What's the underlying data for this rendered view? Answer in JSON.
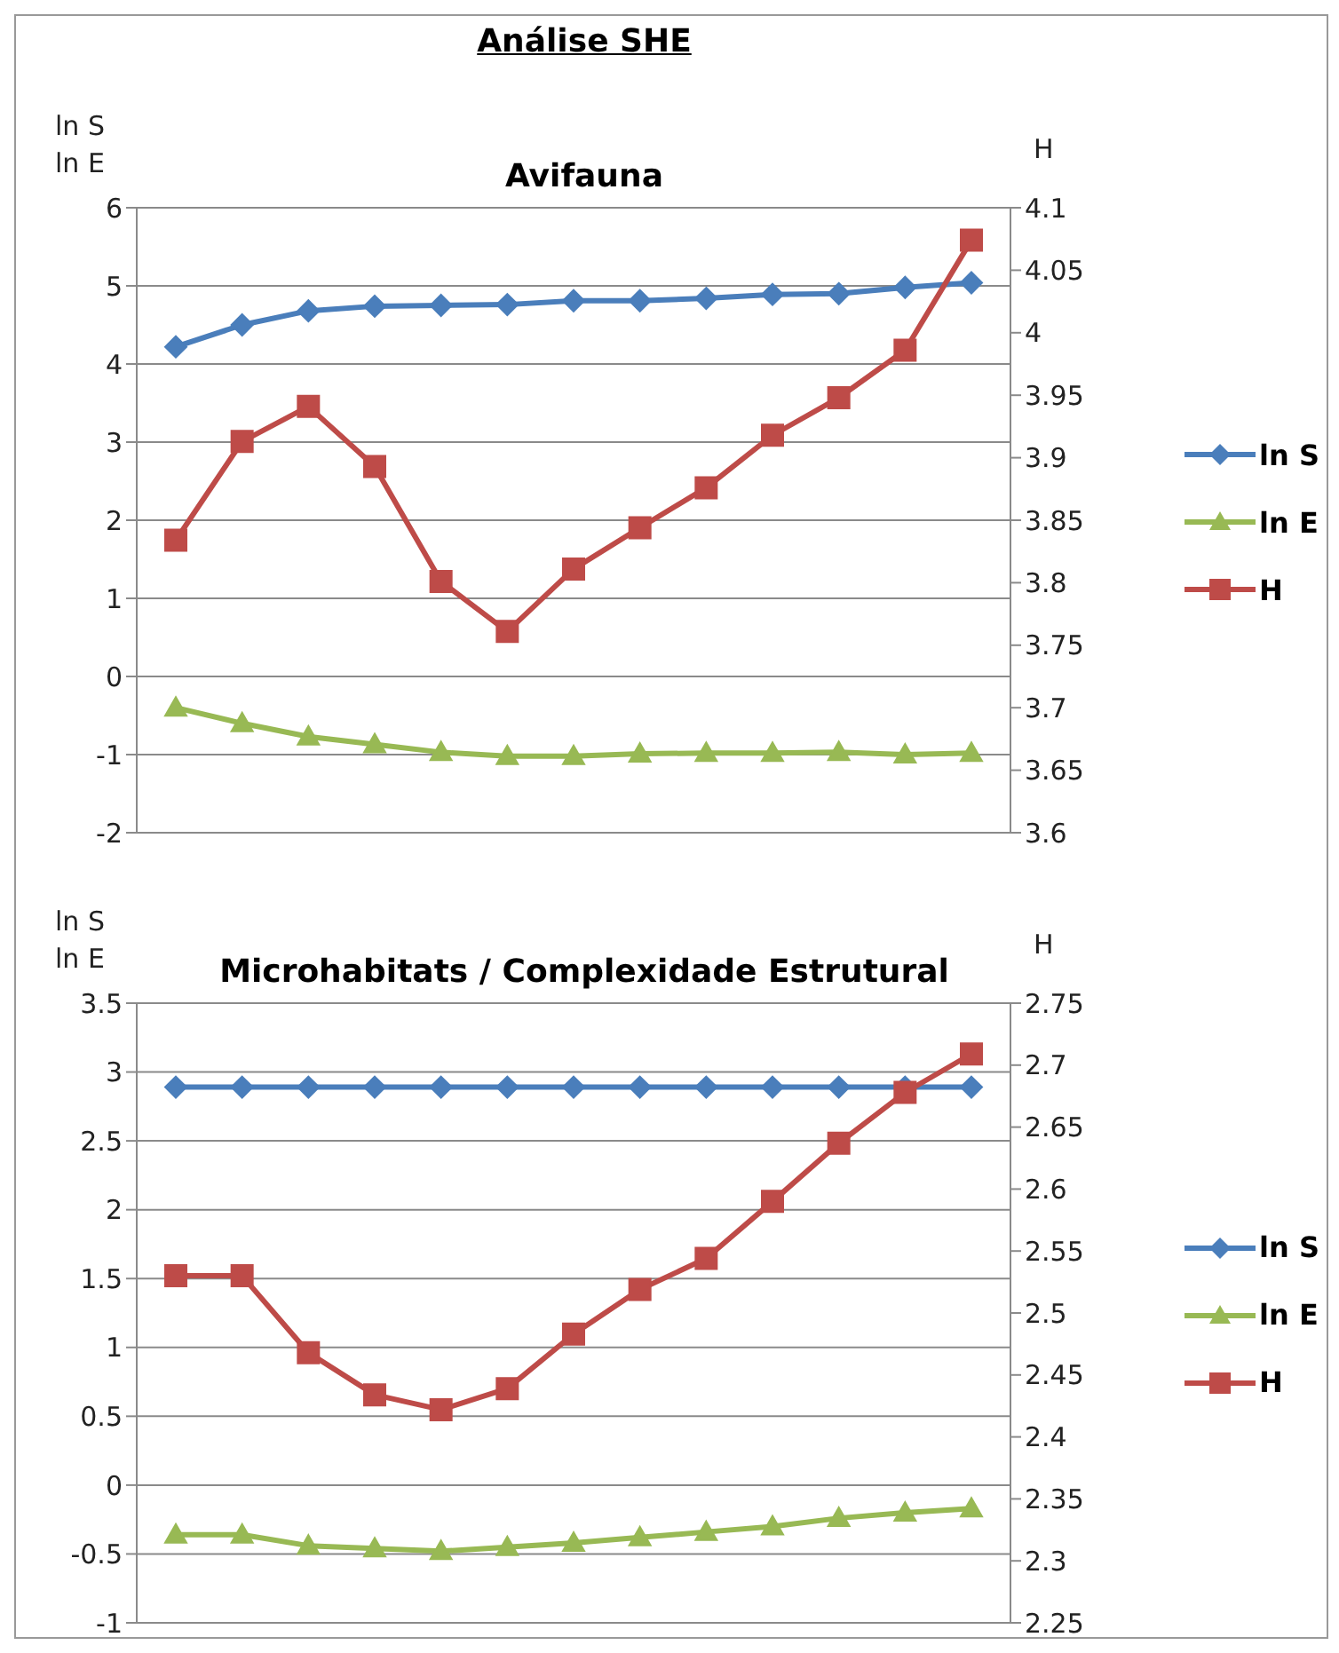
{
  "chart_data": [
    {
      "type": "line",
      "title": "Análise SHE",
      "subtitle": "Avifauna",
      "ylabel": "ln S\nln E",
      "y2label": "H",
      "categories": [
        null,
        null,
        null,
        null,
        null,
        null,
        null,
        null,
        null,
        null,
        null,
        null,
        null
      ],
      "series": [
        {
          "name": "ln S",
          "color": "#4a7ebb",
          "marker": "diamond",
          "values": [
            4.22,
            4.5,
            4.68,
            4.74,
            4.75,
            4.76,
            4.81,
            4.81,
            4.84,
            4.89,
            4.9,
            4.98,
            5.04
          ]
        },
        {
          "name": "ln E",
          "color": "#98b954",
          "marker": "triangle",
          "values": [
            -0.4,
            -0.6,
            -0.77,
            -0.87,
            -0.97,
            -1.02,
            -1.02,
            -0.99,
            -0.98,
            -0.98,
            -0.97,
            -1.0,
            -0.98
          ]
        },
        {
          "name": "H",
          "color": "#be4b48",
          "marker": "square",
          "axis": "y2",
          "values": [
            3.834,
            3.913,
            3.941,
            3.893,
            3.801,
            3.761,
            3.811,
            3.844,
            3.876,
            3.918,
            3.948,
            3.986,
            4.074
          ]
        }
      ],
      "ylim": [
        -2,
        6
      ],
      "yticks": [
        -2,
        -1,
        0,
        1,
        2,
        3,
        4,
        5,
        6
      ],
      "y2lim": [
        3.6,
        4.1
      ],
      "y2ticks": [
        3.6,
        3.65,
        3.7,
        3.75,
        3.8,
        3.85,
        3.9,
        3.95,
        4,
        4.05,
        4.1
      ],
      "grid": "y",
      "legend": "right",
      "tick_labels": "y"
    },
    {
      "type": "line",
      "title": "Microhabitats / Complexidade Estrutural",
      "ylabel": "ln S\nln E",
      "y2label": "H",
      "categories": [
        null,
        null,
        null,
        null,
        null,
        null,
        null,
        null,
        null,
        null,
        null,
        null,
        null
      ],
      "series": [
        {
          "name": "ln S",
          "color": "#4a7ebb",
          "marker": "diamond",
          "values": [
            2.89,
            2.89,
            2.89,
            2.89,
            2.89,
            2.89,
            2.89,
            2.89,
            2.89,
            2.89,
            2.89,
            2.89,
            2.89
          ]
        },
        {
          "name": "ln E",
          "color": "#98b954",
          "marker": "triangle",
          "values": [
            -0.36,
            -0.36,
            -0.44,
            -0.46,
            -0.48,
            -0.45,
            -0.42,
            -0.38,
            -0.34,
            -0.3,
            -0.24,
            -0.2,
            -0.17
          ]
        },
        {
          "name": "H",
          "color": "#be4b48",
          "marker": "square",
          "axis": "y2",
          "values": [
            2.53,
            2.53,
            2.468,
            2.434,
            2.422,
            2.439,
            2.483,
            2.519,
            2.544,
            2.59,
            2.637,
            2.678,
            2.709
          ]
        }
      ],
      "ylim": [
        -1,
        3.5
      ],
      "yticks": [
        -1,
        -0.5,
        0,
        0.5,
        1,
        1.5,
        2,
        2.5,
        3,
        3.5
      ],
      "y2lim": [
        2.25,
        2.75
      ],
      "y2ticks": [
        2.25,
        2.3,
        2.35,
        2.4,
        2.45,
        2.5,
        2.55,
        2.6,
        2.65,
        2.7,
        2.75
      ],
      "grid": "y",
      "legend": "right",
      "tick_labels": "y"
    }
  ]
}
